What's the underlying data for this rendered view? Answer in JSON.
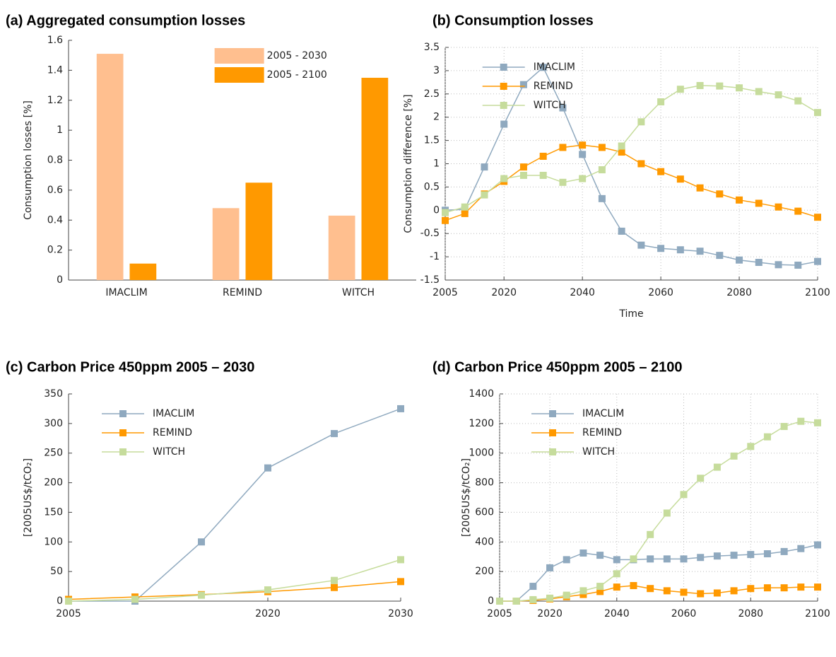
{
  "chart_data": [
    {
      "type": "bar",
      "title": "(a) Aggregated consumption losses",
      "ylabel": "Consumption losses [%]",
      "categories": [
        "IMACLIM",
        "REMIND",
        "WITCH"
      ],
      "series": [
        {
          "name": "2005 - 2030",
          "color": "#ffbf8f",
          "values": [
            1.51,
            0.48,
            0.43
          ]
        },
        {
          "name": "2005 - 2100",
          "color": "#ff9900",
          "values": [
            0.11,
            0.65,
            1.35
          ]
        }
      ],
      "ylim": [
        0,
        1.6
      ],
      "yticks": [
        0,
        0.2,
        0.4,
        0.6,
        0.8,
        1,
        1.2,
        1.4,
        1.6
      ],
      "grid": false,
      "legend": "upper center"
    },
    {
      "type": "line",
      "title": "(b) Consumption losses",
      "xlabel": "Time",
      "ylabel": "Consumption difference [%]",
      "x": [
        2005,
        2010,
        2015,
        2020,
        2025,
        2030,
        2035,
        2040,
        2045,
        2050,
        2055,
        2060,
        2065,
        2070,
        2075,
        2080,
        2085,
        2090,
        2095,
        2100
      ],
      "series": [
        {
          "name": "IMACLIM",
          "color": "#8fa9bf",
          "values": [
            0,
            0.02,
            0.93,
            1.85,
            2.7,
            3.07,
            2.2,
            1.2,
            0.25,
            -0.45,
            -0.75,
            -0.82,
            -0.85,
            -0.88,
            -0.97,
            -1.07,
            -1.12,
            -1.17,
            -1.18,
            -1.1
          ]
        },
        {
          "name": "REMIND",
          "color": "#ff9900",
          "values": [
            -0.22,
            -0.07,
            0.35,
            0.62,
            0.93,
            1.16,
            1.35,
            1.4,
            1.35,
            1.25,
            1.0,
            0.83,
            0.67,
            0.48,
            0.35,
            0.22,
            0.15,
            0.07,
            -0.02,
            -0.15
          ]
        },
        {
          "name": "WITCH",
          "color": "#c6dc9c",
          "values": [
            -0.05,
            0.07,
            0.33,
            0.68,
            0.75,
            0.75,
            0.6,
            0.68,
            0.87,
            1.38,
            1.9,
            2.33,
            2.6,
            2.68,
            2.67,
            2.63,
            2.55,
            2.48,
            2.35,
            2.1
          ]
        }
      ],
      "xlim": [
        2005,
        2100
      ],
      "xticks": [
        2005,
        2020,
        2040,
        2060,
        2080,
        2100
      ],
      "ylim": [
        -1.5,
        3.5
      ],
      "yticks": [
        -1.5,
        -1,
        -0.5,
        0,
        0.5,
        1,
        1.5,
        2,
        2.5,
        3,
        3.5
      ],
      "grid": true,
      "legend": "upper left"
    },
    {
      "type": "line",
      "title": "(c) Carbon Price 450ppm 2005 – 2030",
      "ylabel": "[2005US$/tCO₂]",
      "x": [
        2005,
        2010,
        2015,
        2020,
        2025,
        2030
      ],
      "series": [
        {
          "name": "IMACLIM",
          "color": "#8fa9bf",
          "values": [
            0,
            0,
            100,
            225,
            283,
            325
          ]
        },
        {
          "name": "REMIND",
          "color": "#ff9900",
          "values": [
            3,
            7,
            11,
            16,
            23,
            33
          ]
        },
        {
          "name": "WITCH",
          "color": "#c6dc9c",
          "values": [
            0,
            3,
            10,
            19,
            35,
            70
          ]
        }
      ],
      "xlim": [
        2005,
        2030
      ],
      "xticks": [
        2005,
        2020,
        2030
      ],
      "ylim": [
        0,
        350
      ],
      "yticks": [
        0,
        50,
        100,
        150,
        200,
        250,
        300,
        350
      ],
      "grid": false,
      "legend": "upper left"
    },
    {
      "type": "line",
      "title": "(d) Carbon Price 450ppm 2005 – 2100",
      "ylabel": "[2005US$/tCO₂]",
      "x": [
        2005,
        2010,
        2015,
        2020,
        2025,
        2030,
        2035,
        2040,
        2045,
        2050,
        2055,
        2060,
        2065,
        2070,
        2075,
        2080,
        2085,
        2090,
        2095,
        2100
      ],
      "series": [
        {
          "name": "IMACLIM",
          "color": "#8fa9bf",
          "values": [
            0,
            0,
            100,
            225,
            280,
            325,
            310,
            280,
            280,
            285,
            285,
            285,
            295,
            305,
            310,
            315,
            320,
            335,
            355,
            380
          ]
        },
        {
          "name": "REMIND",
          "color": "#ff9900",
          "values": [
            0,
            0,
            5,
            15,
            30,
            45,
            65,
            95,
            105,
            85,
            70,
            60,
            50,
            55,
            70,
            85,
            90,
            90,
            95,
            95
          ]
        },
        {
          "name": "WITCH",
          "color": "#c6dc9c",
          "values": [
            0,
            0,
            10,
            20,
            40,
            70,
            100,
            185,
            285,
            450,
            595,
            720,
            830,
            905,
            980,
            1045,
            1110,
            1180,
            1215,
            1205
          ]
        }
      ],
      "xlim": [
        2005,
        2100
      ],
      "xticks": [
        2005,
        2020,
        2040,
        2060,
        2080,
        2100
      ],
      "ylim": [
        0,
        1400
      ],
      "yticks": [
        0,
        200,
        400,
        600,
        800,
        1000,
        1200,
        1400
      ],
      "grid": true,
      "legend": "upper left"
    }
  ]
}
